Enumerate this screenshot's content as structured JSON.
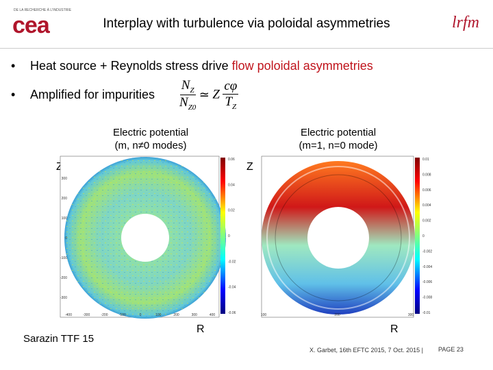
{
  "header": {
    "logo_tagline": "DE LA RECHERCHE À L'INDUSTRIE",
    "logo": "cea",
    "title": "Interplay with turbulence via poloidal asymmetries",
    "logo_right": "lrfm"
  },
  "bullets": [
    {
      "text": "Heat source + Reynolds stress drive ",
      "highlight": "flow poloidal asymmetries"
    },
    {
      "text": "Amplified for impurities"
    }
  ],
  "formula": {
    "lhs_num": "N",
    "lhs_num_sub": "Z",
    "lhs_den": "N",
    "lhs_den_sub": "Z0",
    "relation": "≃",
    "factor": "Z",
    "rhs_num": "cφ",
    "rhs_den": "T",
    "rhs_den_sub": "Z"
  },
  "panels": [
    {
      "title_line1": "Electric potential",
      "title_line2": "(m, n≠0 modes)",
      "y_label": "Z",
      "x_label": "R",
      "colorbar_ticks": [
        "0.06",
        "0.04",
        "0.02",
        "0",
        "-0.02",
        "-0.04",
        "-0.06"
      ],
      "y_ticks": [
        "300",
        "200",
        "100",
        "0",
        "-100",
        "-200",
        "-300"
      ],
      "x_ticks": [
        "-400",
        "-300",
        "-200",
        "-100",
        "0",
        "100",
        "200",
        "300",
        "400"
      ]
    },
    {
      "title_line1": "Electric potential",
      "title_line2": "(m=1, n=0 mode)",
      "y_label": "Z",
      "x_label": "R",
      "colorbar_ticks": [
        "0.01",
        "0.008",
        "0.006",
        "0.004",
        "0.002",
        "0",
        "-0.002",
        "-0.004",
        "-0.006",
        "-0.008",
        "-0.01"
      ],
      "y_ticks": [],
      "x_ticks": [
        "100",
        "200",
        "300"
      ]
    }
  ],
  "credit": "Sarazin TTF 15",
  "footer": {
    "citation": "X. Garbet, 16th EFTC 2015, 7 Oct. 2015 |",
    "page": "PAGE 23"
  }
}
